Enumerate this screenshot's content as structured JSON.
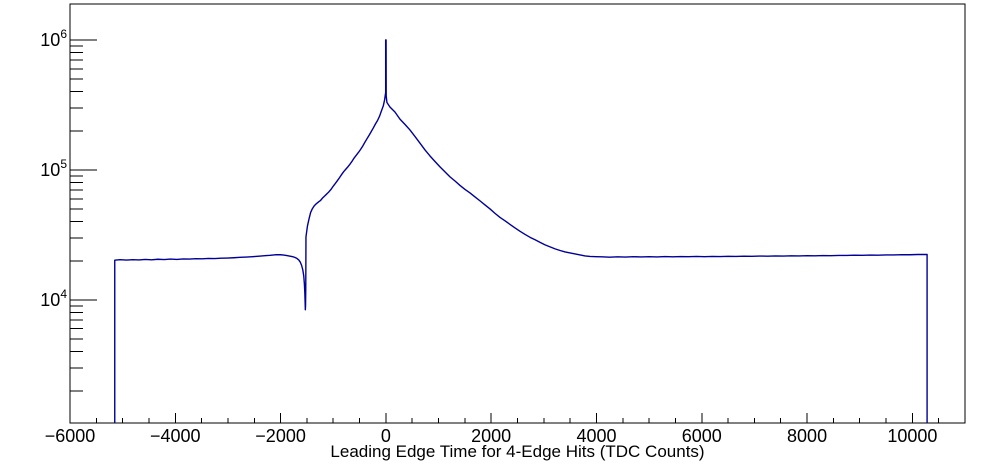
{
  "colors": {
    "line": "#000099",
    "axis": "#000000",
    "background": "#ffffff",
    "text": "#000000"
  },
  "chart_data": {
    "type": "line",
    "title": "",
    "xlabel": "Leading Edge Time for 4-Edge Hits (TDC Counts)",
    "ylabel": "",
    "grid": false,
    "legend": "none",
    "x_axis": {
      "min": -6000,
      "max": 11000,
      "major_tick_values": [
        -6000,
        -4000,
        -2000,
        0,
        2000,
        4000,
        6000,
        8000,
        10000
      ],
      "major_tick_labels": [
        "−6000",
        "−4000",
        "−2000",
        "0",
        "2000",
        "4000",
        "6000",
        "8000",
        "10000"
      ],
      "minor_tick_step": 500
    },
    "y_axis": {
      "scale": "log",
      "min": 1130,
      "max": 1890000,
      "label_base": "10",
      "major_ticks": [
        {
          "value": 10000,
          "exponent": "4"
        },
        {
          "value": 100000,
          "exponent": "5"
        },
        {
          "value": 1000000,
          "exponent": "6"
        }
      ],
      "minor_tick_mantissas": [
        2,
        3,
        4,
        5,
        6,
        7,
        8,
        9
      ],
      "minor_tick_decades": [
        3,
        4,
        5,
        6
      ]
    },
    "series": [
      {
        "name": "leading-edge-time-histogram",
        "color": "#000099",
        "points": [
          [
            -5150,
            1130
          ],
          [
            -5150,
            20200
          ],
          [
            -5050,
            20400
          ],
          [
            -4930,
            20250
          ],
          [
            -4810,
            20400
          ],
          [
            -4690,
            20300
          ],
          [
            -4570,
            20500
          ],
          [
            -4450,
            20350
          ],
          [
            -4330,
            20550
          ],
          [
            -4210,
            20450
          ],
          [
            -4090,
            20600
          ],
          [
            -3970,
            20500
          ],
          [
            -3850,
            20650
          ],
          [
            -3730,
            20600
          ],
          [
            -3610,
            20750
          ],
          [
            -3490,
            20700
          ],
          [
            -3370,
            20850
          ],
          [
            -3250,
            20800
          ],
          [
            -3130,
            20950
          ],
          [
            -3010,
            21000
          ],
          [
            -2890,
            21100
          ],
          [
            -2770,
            21250
          ],
          [
            -2650,
            21350
          ],
          [
            -2530,
            21500
          ],
          [
            -2410,
            21700
          ],
          [
            -2300,
            21900
          ],
          [
            -2200,
            22050
          ],
          [
            -2100,
            22250
          ],
          [
            -2000,
            22250
          ],
          [
            -1940,
            22150
          ],
          [
            -1880,
            21950
          ],
          [
            -1820,
            21700
          ],
          [
            -1770,
            21500
          ],
          [
            -1730,
            21250
          ],
          [
            -1690,
            20850
          ],
          [
            -1655,
            20300
          ],
          [
            -1625,
            19500
          ],
          [
            -1600,
            18400
          ],
          [
            -1578,
            17000
          ],
          [
            -1560,
            15300
          ],
          [
            -1548,
            13300
          ],
          [
            -1540,
            11400
          ],
          [
            -1534,
            9600
          ],
          [
            -1530,
            8400
          ],
          [
            -1526,
            9000
          ],
          [
            -1522,
            12000
          ],
          [
            -1520,
            18000
          ],
          [
            -1518,
            30500
          ],
          [
            -1490,
            37000
          ],
          [
            -1460,
            42000
          ],
          [
            -1430,
            47000
          ],
          [
            -1400,
            50000
          ],
          [
            -1360,
            53000
          ],
          [
            -1320,
            55000
          ],
          [
            -1280,
            56700
          ],
          [
            -1240,
            58300
          ],
          [
            -1200,
            61000
          ],
          [
            -1160,
            63200
          ],
          [
            -1120,
            65500
          ],
          [
            -1080,
            68000
          ],
          [
            -1040,
            71000
          ],
          [
            -1000,
            75000
          ],
          [
            -960,
            78700
          ],
          [
            -920,
            82800
          ],
          [
            -880,
            87300
          ],
          [
            -840,
            92300
          ],
          [
            -800,
            97200
          ],
          [
            -760,
            101400
          ],
          [
            -720,
            105800
          ],
          [
            -680,
            111000
          ],
          [
            -640,
            117000
          ],
          [
            -600,
            124000
          ],
          [
            -560,
            130000
          ],
          [
            -520,
            136500
          ],
          [
            -480,
            144000
          ],
          [
            -440,
            152500
          ],
          [
            -400,
            163000
          ],
          [
            -360,
            173500
          ],
          [
            -320,
            184500
          ],
          [
            -280,
            196500
          ],
          [
            -240,
            210000
          ],
          [
            -200,
            225000
          ],
          [
            -160,
            239500
          ],
          [
            -120,
            259000
          ],
          [
            -80,
            288000
          ],
          [
            -50,
            310000
          ],
          [
            -25,
            345000
          ],
          [
            -10,
            380000
          ],
          [
            -4,
            394000
          ],
          [
            -4,
            1000000
          ],
          [
            4,
            1000000
          ],
          [
            6,
            370000
          ],
          [
            20,
            330000
          ],
          [
            77,
            305000
          ],
          [
            172,
            279000
          ],
          [
            267,
            246000
          ],
          [
            362,
            224000
          ],
          [
            457,
            203000
          ],
          [
            552,
            181000
          ],
          [
            648,
            160500
          ],
          [
            743,
            142500
          ],
          [
            838,
            128000
          ],
          [
            933,
            116100
          ],
          [
            1028,
            105500
          ],
          [
            1123,
            96600
          ],
          [
            1218,
            88400
          ],
          [
            1313,
            82200
          ],
          [
            1408,
            76000
          ],
          [
            1503,
            70800
          ],
          [
            1598,
            66500
          ],
          [
            1693,
            62000
          ],
          [
            1788,
            57800
          ],
          [
            1883,
            53800
          ],
          [
            1978,
            50100
          ],
          [
            2073,
            46300
          ],
          [
            2168,
            43100
          ],
          [
            2263,
            40600
          ],
          [
            2358,
            38100
          ],
          [
            2453,
            35800
          ],
          [
            2549,
            33700
          ],
          [
            2644,
            31900
          ],
          [
            2739,
            30300
          ],
          [
            2834,
            29000
          ],
          [
            2929,
            27700
          ],
          [
            3024,
            26500
          ],
          [
            3119,
            25600
          ],
          [
            3214,
            24700
          ],
          [
            3309,
            24000
          ],
          [
            3404,
            23400
          ],
          [
            3499,
            23000
          ],
          [
            3594,
            22600
          ],
          [
            3689,
            22200
          ],
          [
            3784,
            21800
          ],
          [
            3879,
            21600
          ],
          [
            3990,
            21500
          ],
          [
            4100,
            21450
          ],
          [
            4250,
            21300
          ],
          [
            4400,
            21450
          ],
          [
            4550,
            21350
          ],
          [
            4700,
            21500
          ],
          [
            4850,
            21400
          ],
          [
            5000,
            21500
          ],
          [
            5150,
            21400
          ],
          [
            5300,
            21550
          ],
          [
            5450,
            21450
          ],
          [
            5600,
            21550
          ],
          [
            5750,
            21500
          ],
          [
            5900,
            21600
          ],
          [
            6050,
            21500
          ],
          [
            6200,
            21600
          ],
          [
            6350,
            21550
          ],
          [
            6500,
            21650
          ],
          [
            6650,
            21600
          ],
          [
            6800,
            21700
          ],
          [
            6950,
            21650
          ],
          [
            7100,
            21750
          ],
          [
            7250,
            21700
          ],
          [
            7400,
            21800
          ],
          [
            7550,
            21750
          ],
          [
            7700,
            21850
          ],
          [
            7850,
            21800
          ],
          [
            8000,
            21900
          ],
          [
            8150,
            21850
          ],
          [
            8300,
            21950
          ],
          [
            8450,
            21900
          ],
          [
            8600,
            22000
          ],
          [
            8750,
            22000
          ],
          [
            8900,
            22100
          ],
          [
            9050,
            22050
          ],
          [
            9200,
            22150
          ],
          [
            9350,
            22100
          ],
          [
            9500,
            22200
          ],
          [
            9650,
            22200
          ],
          [
            9800,
            22300
          ],
          [
            9950,
            22250
          ],
          [
            10100,
            22350
          ],
          [
            10280,
            22350
          ],
          [
            10280,
            1130
          ]
        ]
      }
    ]
  }
}
